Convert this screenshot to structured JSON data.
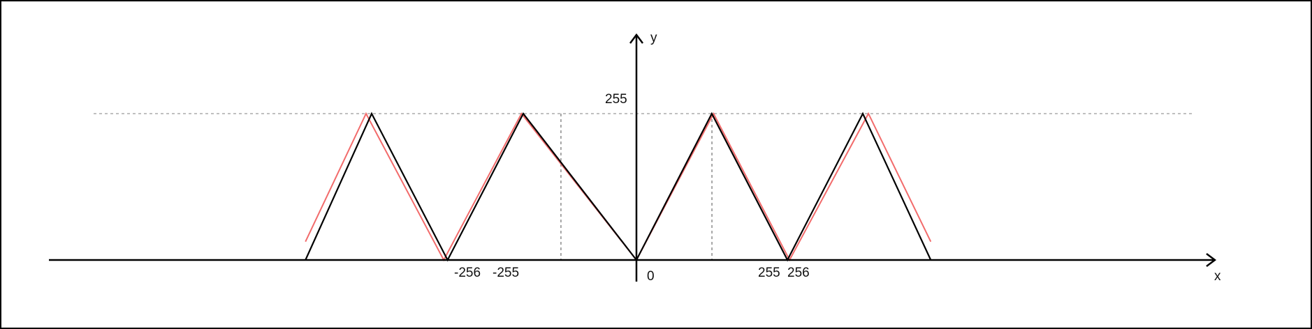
{
  "labels": {
    "x_axis": "x",
    "y_axis": "y",
    "y_255": "255",
    "x_neg256": "-256",
    "x_neg255": "-255",
    "x_zero": "0",
    "x_255": "255",
    "x_256": "256"
  },
  "colors": {
    "black_curve": "#000000",
    "red_curve": "#f26b6b",
    "guide": "#9a9a9a"
  },
  "curves": {
    "black": {
      "name": "",
      "points": [
        [
          -1120,
          0
        ],
        [
          -896,
          255
        ],
        [
          -639,
          0
        ],
        [
          -383,
          255
        ],
        [
          0,
          0
        ],
        [
          255,
          255
        ],
        [
          511,
          0
        ],
        [
          766,
          255
        ],
        [
          996,
          0
        ]
      ]
    },
    "red": {
      "name": "",
      "points": [
        [
          -1120,
          32
        ],
        [
          -915,
          255
        ],
        [
          -652,
          0
        ],
        [
          -389,
          255
        ],
        [
          0,
          0
        ],
        [
          261,
          255
        ],
        [
          518,
          0
        ],
        [
          785,
          255
        ],
        [
          996,
          32
        ]
      ]
    }
  },
  "guides": {
    "y_level": 255,
    "x_levels": [
      -256,
      -255,
      255,
      256
    ]
  }
}
